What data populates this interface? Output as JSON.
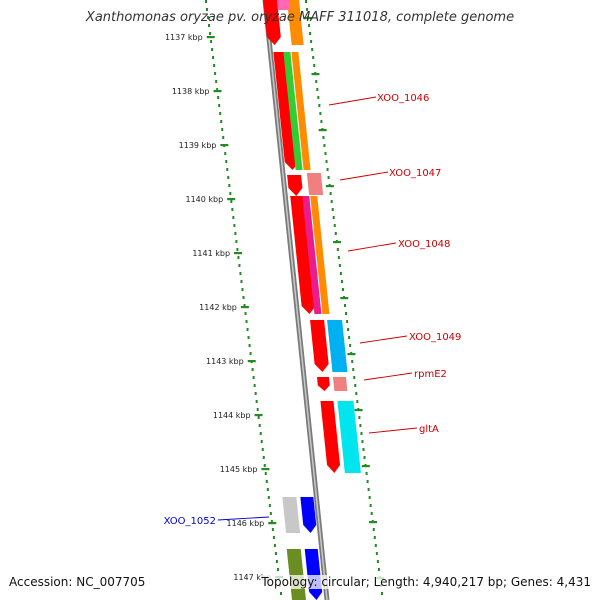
{
  "title": "Xanthomonas oryzae pv. oryzae MAFF 311018, complete genome",
  "accession": "Accession: NC_007705",
  "topology": "Topology: circular; Length: 4,940,217 bp; Genes: 4,431",
  "colors": {
    "backbone": "#808080",
    "tick": "#228b22",
    "label_red": "#cc0000",
    "label_blue": "#0000cc"
  },
  "kbp_labels": [
    "1137 kbp",
    "1138 kbp",
    "1139 kbp",
    "1140 kbp",
    "1141 kbp",
    "1142 kbp",
    "1143 kbp",
    "1144 kbp",
    "1145 kbp",
    "1146 kbp",
    "1147 kbp"
  ],
  "gene_labels": [
    {
      "text": "XOO_1046",
      "color": "red"
    },
    {
      "text": "XOO_1047",
      "color": "red"
    },
    {
      "text": "XOO_1048",
      "color": "red"
    },
    {
      "text": "XOO_1049",
      "color": "red"
    },
    {
      "text": "rpmE2",
      "color": "red"
    },
    {
      "text": "gltA",
      "color": "red"
    },
    {
      "text": "XOO_1052",
      "color": "blue"
    }
  ]
}
